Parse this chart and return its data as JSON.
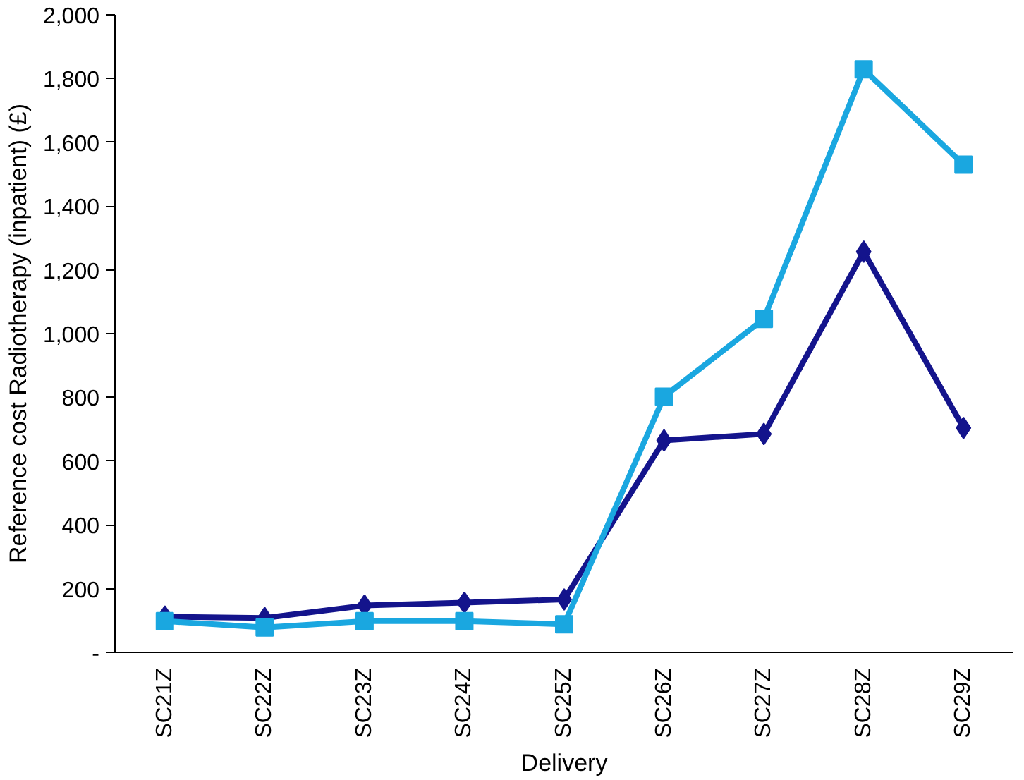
{
  "chart_data": {
    "type": "line",
    "xlabel": "Delivery",
    "ylabel": "Reference cost Radiotherapy (inpatient) (£)",
    "categories": [
      "SC21Z",
      "SC22Z",
      "SC23Z",
      "SC24Z",
      "SC25Z",
      "SC26Z",
      "SC27Z",
      "SC28Z",
      "SC29Z"
    ],
    "series": [
      {
        "color": "#14148c",
        "marker": "diamond",
        "values": [
          112,
          108,
          147,
          156,
          166,
          665,
          685,
          1257,
          704
        ]
      },
      {
        "color": "#1aa7e0",
        "marker": "square",
        "values": [
          98,
          78,
          98,
          98,
          88,
          802,
          1046,
          1829,
          1530
        ]
      }
    ],
    "ylim": [
      0,
      2000
    ],
    "yticks": [
      {
        "value": 0,
        "label": "-"
      },
      200,
      400,
      600,
      800,
      {
        "value": 1000,
        "label": "1,000"
      },
      {
        "value": 1200,
        "label": "1,200"
      },
      {
        "value": 1400,
        "label": "1,400"
      },
      {
        "value": 1600,
        "label": "1,600"
      },
      {
        "value": 1800,
        "label": "1,800"
      },
      {
        "value": 2000,
        "label": "2,000"
      }
    ],
    "grid": false,
    "line_style": "solid"
  }
}
